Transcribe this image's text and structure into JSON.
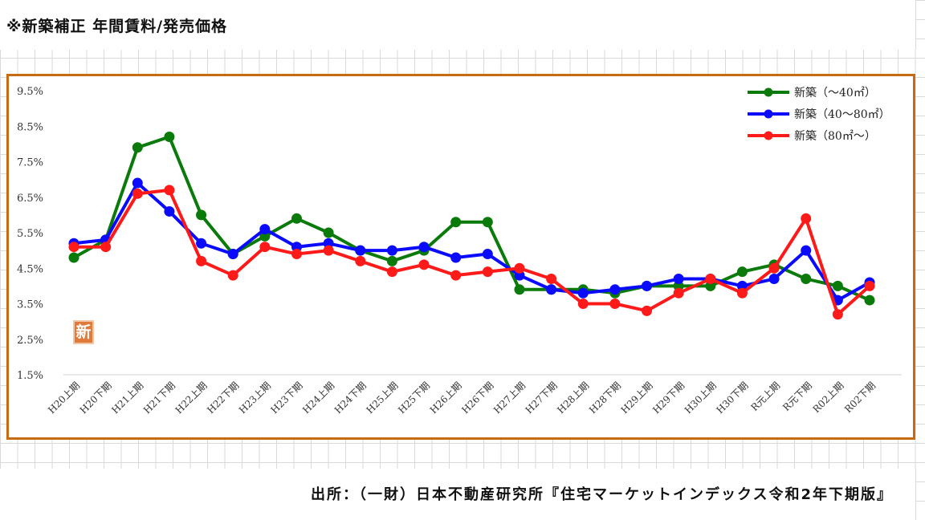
{
  "page": {
    "title": "※新築補正 年間賃料/発売価格",
    "source": "出所：（一財）日本不動産研究所『住宅マーケットインデックス令和2年下期版』",
    "badge": "新"
  },
  "chart_data": {
    "type": "line",
    "categories": [
      "H20上期",
      "H20下期",
      "H21上期",
      "H21下期",
      "H22上期",
      "H22下期",
      "H23上期",
      "H23下期",
      "H24上期",
      "H24下期",
      "H25上期",
      "H25下期",
      "H26上期",
      "H26下期",
      "H27上期",
      "H27下期",
      "H28上期",
      "H28下期",
      "H29上期",
      "H29下期",
      "H30上期",
      "H30下期",
      "R元上期",
      "R元下期",
      "R02上期",
      "R02下期"
    ],
    "y_ticks": [
      "9.5%",
      "8.5%",
      "7.5%",
      "6.5%",
      "5.5%",
      "4.5%",
      "3.5%",
      "2.5%",
      "1.5%"
    ],
    "ylim": [
      1.5,
      9.5
    ],
    "grid": false,
    "legend_position": "top-right",
    "series": [
      {
        "name": "新築（～40㎡）",
        "color": "#0a7a0a",
        "values": [
          4.8,
          5.3,
          7.9,
          8.2,
          6.0,
          4.9,
          5.4,
          5.9,
          5.5,
          5.0,
          4.7,
          5.0,
          5.8,
          5.8,
          3.9,
          3.9,
          3.9,
          3.8,
          4.0,
          4.0,
          4.0,
          4.4,
          4.6,
          4.2,
          4.0,
          3.6
        ]
      },
      {
        "name": "新築（40～80㎡）",
        "color": "#0a0aff",
        "values": [
          5.2,
          5.3,
          6.9,
          6.1,
          5.2,
          4.9,
          5.6,
          5.1,
          5.2,
          5.0,
          5.0,
          5.1,
          4.8,
          4.9,
          4.3,
          3.9,
          3.8,
          3.9,
          4.0,
          4.2,
          4.2,
          4.0,
          4.2,
          5.0,
          3.6,
          4.1
        ]
      },
      {
        "name": "新築（80㎡～）",
        "color": "#ff1a1a",
        "values": [
          5.1,
          5.1,
          6.6,
          6.7,
          4.7,
          4.3,
          5.1,
          4.9,
          5.0,
          4.7,
          4.4,
          4.6,
          4.3,
          4.4,
          4.5,
          4.2,
          3.5,
          3.5,
          3.3,
          3.8,
          4.2,
          3.8,
          4.5,
          5.9,
          3.2,
          4.0
        ]
      }
    ]
  }
}
